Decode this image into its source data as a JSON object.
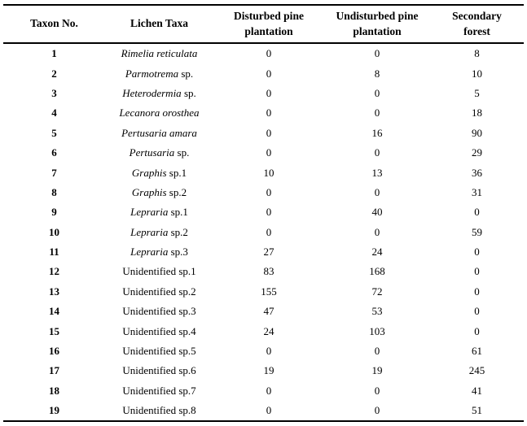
{
  "table": {
    "headers": [
      {
        "label": "Taxon No."
      },
      {
        "label": "Lichen Taxa"
      },
      {
        "label": "Disturbed pine plantation"
      },
      {
        "label": "Undisturbed pine plantation"
      },
      {
        "label": "Secondary forest"
      }
    ],
    "rows": [
      {
        "no": "1",
        "name_italic": "Rimelia reticulata",
        "name_plain": "",
        "disturbed": "0",
        "undisturbed": "0",
        "secondary": "8"
      },
      {
        "no": "2",
        "name_italic": "Parmotrema",
        "name_plain": " sp.",
        "disturbed": "0",
        "undisturbed": "8",
        "secondary": "10"
      },
      {
        "no": "3",
        "name_italic": "Heterodermia",
        "name_plain": " sp.",
        "disturbed": "0",
        "undisturbed": "0",
        "secondary": "5"
      },
      {
        "no": "4",
        "name_italic": "Lecanora orosthea",
        "name_plain": "",
        "disturbed": "0",
        "undisturbed": "0",
        "secondary": "18"
      },
      {
        "no": "5",
        "name_italic": "Pertusaria amara",
        "name_plain": "",
        "disturbed": "0",
        "undisturbed": "16",
        "secondary": "90"
      },
      {
        "no": "6",
        "name_italic": "Pertusaria",
        "name_plain": " sp.",
        "disturbed": "0",
        "undisturbed": "0",
        "secondary": "29"
      },
      {
        "no": "7",
        "name_italic": "Graphis",
        "name_plain": " sp.1",
        "disturbed": "10",
        "undisturbed": "13",
        "secondary": "36"
      },
      {
        "no": "8",
        "name_italic": "Graphis",
        "name_plain": " sp.2",
        "disturbed": "0",
        "undisturbed": "0",
        "secondary": "31"
      },
      {
        "no": "9",
        "name_italic": "Lepraria",
        "name_plain": " sp.1",
        "disturbed": "0",
        "undisturbed": "40",
        "secondary": "0"
      },
      {
        "no": "10",
        "name_italic": "Lepraria",
        "name_plain": " sp.2",
        "disturbed": "0",
        "undisturbed": "0",
        "secondary": "59"
      },
      {
        "no": "11",
        "name_italic": "Lepraria",
        "name_plain": " sp.3",
        "disturbed": "27",
        "undisturbed": "24",
        "secondary": "0"
      },
      {
        "no": "12",
        "name_italic": "",
        "name_plain": "Unidentified sp.1",
        "disturbed": "83",
        "undisturbed": "168",
        "secondary": "0"
      },
      {
        "no": "13",
        "name_italic": "",
        "name_plain": "Unidentified sp.2",
        "disturbed": "155",
        "undisturbed": "72",
        "secondary": "0"
      },
      {
        "no": "14",
        "name_italic": "",
        "name_plain": "Unidentified sp.3",
        "disturbed": "47",
        "undisturbed": "53",
        "secondary": "0"
      },
      {
        "no": "15",
        "name_italic": "",
        "name_plain": "Unidentified sp.4",
        "disturbed": "24",
        "undisturbed": "103",
        "secondary": "0"
      },
      {
        "no": "16",
        "name_italic": "",
        "name_plain": "Unidentified sp.5",
        "disturbed": "0",
        "undisturbed": "0",
        "secondary": "61"
      },
      {
        "no": "17",
        "name_italic": "",
        "name_plain": "Unidentified sp.6",
        "disturbed": "19",
        "undisturbed": "19",
        "secondary": "245"
      },
      {
        "no": "18",
        "name_italic": "",
        "name_plain": "Unidentified sp.7",
        "disturbed": "0",
        "undisturbed": "0",
        "secondary": "41"
      },
      {
        "no": "19",
        "name_italic": "",
        "name_plain": "Unidentified sp.8",
        "disturbed": "0",
        "undisturbed": "0",
        "secondary": "51"
      }
    ]
  }
}
